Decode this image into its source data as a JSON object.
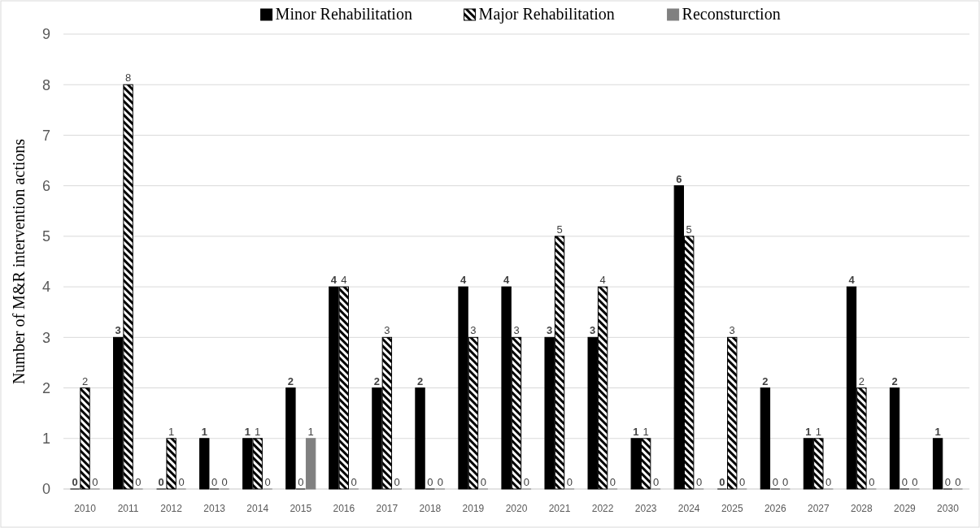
{
  "chart_data": {
    "type": "bar",
    "ylabel": "Number of M&R intervention actions",
    "categories": [
      "2010",
      "2011",
      "2012",
      "2013",
      "2014",
      "2015",
      "2016",
      "2017",
      "2018",
      "2019",
      "2020",
      "2021",
      "2022",
      "2023",
      "2024",
      "2025",
      "2026",
      "2027",
      "2028",
      "2029",
      "2030"
    ],
    "series": [
      {
        "name": "Minor Rehabilitation",
        "color": "#000000",
        "values": [
          0,
          3,
          0,
          1,
          1,
          2,
          4,
          2,
          2,
          4,
          4,
          3,
          3,
          1,
          6,
          0,
          2,
          1,
          4,
          2,
          1
        ]
      },
      {
        "name": "Major Rehabilitation",
        "color": "#000000",
        "values": [
          2,
          8,
          1,
          0,
          1,
          0,
          4,
          3,
          0,
          3,
          3,
          5,
          4,
          1,
          5,
          3,
          0,
          1,
          2,
          0,
          0
        ]
      },
      {
        "name": "Reconsturction",
        "color": "#808080",
        "values": [
          0,
          0,
          0,
          0,
          0,
          1,
          0,
          0,
          0,
          0,
          0,
          0,
          0,
          0,
          0,
          0,
          0,
          0,
          0,
          0,
          0
        ]
      }
    ],
    "ylim": [
      0,
      9
    ],
    "yticks": [
      0,
      1,
      2,
      3,
      4,
      5,
      6,
      7,
      8,
      9
    ],
    "grid": "y",
    "legend": "top",
    "data_labels": true
  }
}
